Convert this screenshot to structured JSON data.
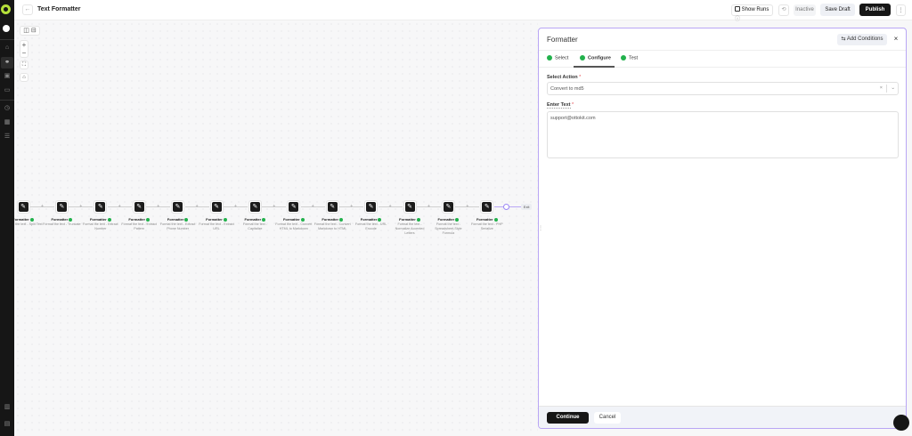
{
  "header": {
    "title": "Text Formatter",
    "show_runs": "Show Runs",
    "status": "Inactive",
    "save_draft": "Save Draft",
    "publish": "Publish"
  },
  "canvas": {
    "nodes": [
      {
        "label": "Formatter",
        "desc": "Format the text - Split Text"
      },
      {
        "label": "Formatter",
        "desc": "Format the text - Truncate"
      },
      {
        "label": "Formatter",
        "desc": "Format the text - Extract Number"
      },
      {
        "label": "Formatter",
        "desc": "Format the text - Extract Pattern"
      },
      {
        "label": "Formatter",
        "desc": "Format the text - Extract Phone Number"
      },
      {
        "label": "Formatter",
        "desc": "Format the text - Extract URL"
      },
      {
        "label": "Formatter",
        "desc": "Format the text - Capitalize"
      },
      {
        "label": "Formatter",
        "desc": "Format the text - Convert HTML to Markdown"
      },
      {
        "label": "Formatter",
        "desc": "Format the text - Convert Markdown to HTML"
      },
      {
        "label": "Formatter",
        "desc": "Format the text - URL Encode"
      },
      {
        "label": "Formatter",
        "desc": "Format the text - Normalize Accented Letters"
      },
      {
        "label": "Formatter",
        "desc": "Format the text - Spreadsheet-Style Formula"
      },
      {
        "label": "Formatter",
        "desc": "Format the text - PHP Serialize"
      }
    ],
    "exit": "Exit"
  },
  "panel": {
    "title": "Formatter",
    "add_conditions": "Add Conditions",
    "tabs": [
      {
        "label": "Select"
      },
      {
        "label": "Configure"
      },
      {
        "label": "Test"
      }
    ],
    "select_action_label": "Select Action",
    "select_action_value": "Convert to md5",
    "enter_text_label": "Enter Text",
    "enter_text_value": "support@ottokit.com",
    "continue": "Continue",
    "cancel": "Cancel"
  },
  "colors": {
    "accent": "#b9a6f5",
    "success": "#22b14c",
    "primary": "#161616",
    "logo": "#b5e03a"
  }
}
